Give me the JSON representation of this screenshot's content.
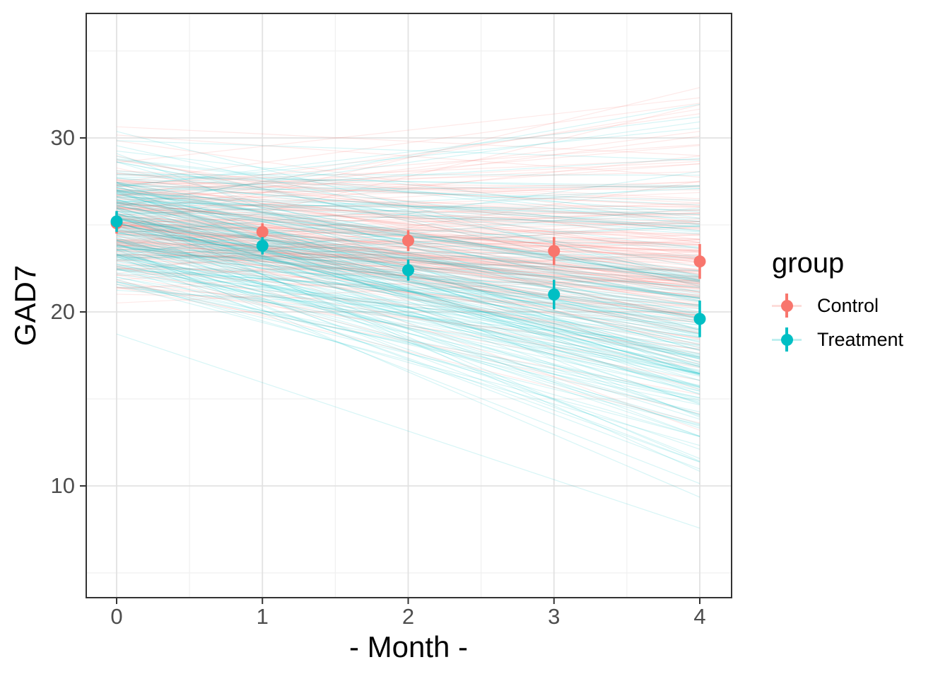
{
  "chart_data": {
    "type": "line",
    "title": "",
    "xlabel": "- Month -",
    "ylabel": "GAD7",
    "legend_title": "group",
    "legend_position": "right",
    "grid": true,
    "x": [
      0,
      1,
      2,
      3,
      4
    ],
    "xtick_labels": [
      "0",
      "1",
      "2",
      "3",
      "4"
    ],
    "xtick_values": [
      0,
      1,
      2,
      3,
      4
    ],
    "xticks_minor": [
      0.5,
      1.5,
      2.5,
      3.5
    ],
    "ytick_labels": [
      "30",
      "20",
      "10"
    ],
    "ytick_values": [
      30,
      20,
      10
    ],
    "yticks_minor": [
      35,
      25,
      15,
      5
    ],
    "xlim": [
      -0.21,
      4.22
    ],
    "ylim": [
      3.6,
      37.2
    ],
    "series": [
      {
        "name": "Control",
        "color": "#F8766D",
        "means": [
          25.1,
          24.6,
          24.1,
          23.5,
          22.9
        ],
        "ci_half": [
          0.6,
          0.5,
          0.6,
          0.8,
          1.0
        ]
      },
      {
        "name": "Treatment",
        "color": "#00BFC4",
        "means": [
          25.2,
          23.8,
          22.4,
          21.0,
          19.6
        ],
        "ci_half": [
          0.6,
          0.5,
          0.6,
          0.85,
          1.05
        ]
      }
    ],
    "spaghetti": {
      "note": "thin translucent per-subject straight trajectories from month 0 to month 4",
      "n_per_group": 200,
      "alpha": 0.16,
      "intercept_mean": 25.2,
      "intercept_sd": 1.8,
      "slopes": {
        "Control": {
          "mean": -0.55,
          "sd": 0.8
        },
        "Treatment": {
          "mean": -1.4,
          "sd": 1.05
        }
      },
      "seed": 7
    }
  },
  "style": {
    "background": "#FFFFFF",
    "panel_border": "#333333",
    "grid_major": "#E2E2E2",
    "grid_minor": "#F0F0F0",
    "tick_color": "#333333",
    "tick_label_color": "#4D4D4D",
    "axis_title_color": "#000000"
  }
}
